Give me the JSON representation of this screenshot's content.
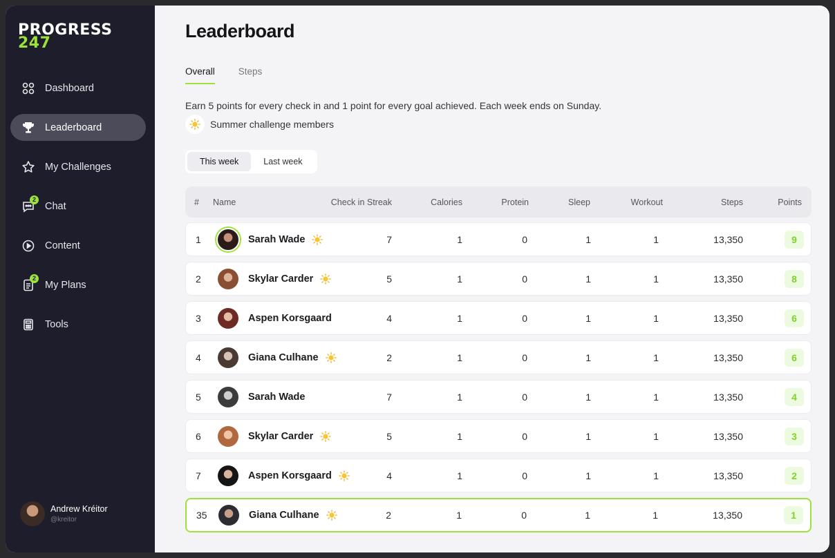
{
  "logo": {
    "line1": "PROGRESS",
    "line2": "247"
  },
  "sidebar": {
    "items": [
      {
        "label": "Dashboard",
        "icon": "grid-icon"
      },
      {
        "label": "Leaderboard",
        "icon": "trophy-icon",
        "active": true
      },
      {
        "label": "My Challenges",
        "icon": "star-icon"
      },
      {
        "label": "Chat",
        "icon": "chat-icon",
        "badge": "2"
      },
      {
        "label": "Content",
        "icon": "play-icon"
      },
      {
        "label": "My Plans",
        "icon": "document-icon",
        "badge": "2"
      },
      {
        "label": "Tools",
        "icon": "calculator-icon"
      }
    ],
    "user": {
      "name": "Andrew Kréitor",
      "handle": "@kreitor"
    }
  },
  "page": {
    "title": "Leaderboard",
    "tabs": [
      {
        "label": "Overall",
        "active": true
      },
      {
        "label": "Steps",
        "active": false
      }
    ],
    "description": "Earn 5 points for every check in and 1 point for every goal achieved. Each week ends on Sunday.",
    "legend_label": "Summer challenge members",
    "period": [
      {
        "label": "This week",
        "active": true
      },
      {
        "label": "Last week",
        "active": false
      }
    ]
  },
  "table": {
    "headers": {
      "rank": "#",
      "name": "Name",
      "streak": "Check in Streak",
      "calories": "Calories",
      "protein": "Protein",
      "sleep": "Sleep",
      "workout": "Workout",
      "steps": "Steps",
      "points": "Points"
    },
    "rows": [
      {
        "rank": "1",
        "name": "Sarah Wade",
        "summer": true,
        "streak": "7",
        "calories": "1",
        "protein": "0",
        "sleep": "1",
        "workout": "1",
        "steps": "13,350",
        "points": "9"
      },
      {
        "rank": "2",
        "name": "Skylar Carder",
        "summer": true,
        "streak": "5",
        "calories": "1",
        "protein": "0",
        "sleep": "1",
        "workout": "1",
        "steps": "13,350",
        "points": "8"
      },
      {
        "rank": "3",
        "name": "Aspen Korsgaard",
        "summer": false,
        "streak": "4",
        "calories": "1",
        "protein": "0",
        "sleep": "1",
        "workout": "1",
        "steps": "13,350",
        "points": "6"
      },
      {
        "rank": "4",
        "name": "Giana Culhane",
        "summer": true,
        "streak": "2",
        "calories": "1",
        "protein": "0",
        "sleep": "1",
        "workout": "1",
        "steps": "13,350",
        "points": "6"
      },
      {
        "rank": "5",
        "name": "Sarah Wade",
        "summer": false,
        "streak": "7",
        "calories": "1",
        "protein": "0",
        "sleep": "1",
        "workout": "1",
        "steps": "13,350",
        "points": "4"
      },
      {
        "rank": "6",
        "name": "Skylar Carder",
        "summer": true,
        "streak": "5",
        "calories": "1",
        "protein": "0",
        "sleep": "1",
        "workout": "1",
        "steps": "13,350",
        "points": "3"
      },
      {
        "rank": "7",
        "name": "Aspen Korsgaard",
        "summer": true,
        "streak": "4",
        "calories": "1",
        "protein": "0",
        "sleep": "1",
        "workout": "1",
        "steps": "13,350",
        "points": "2"
      },
      {
        "rank": "35",
        "name": "Giana Culhane",
        "summer": true,
        "streak": "2",
        "calories": "1",
        "protein": "0",
        "sleep": "1",
        "workout": "1",
        "steps": "13,350",
        "points": "1",
        "current_user": true
      }
    ]
  },
  "colors": {
    "accent": "#9be33a",
    "sidebar": "#1d1d2b",
    "background": "#f4f4f7"
  }
}
